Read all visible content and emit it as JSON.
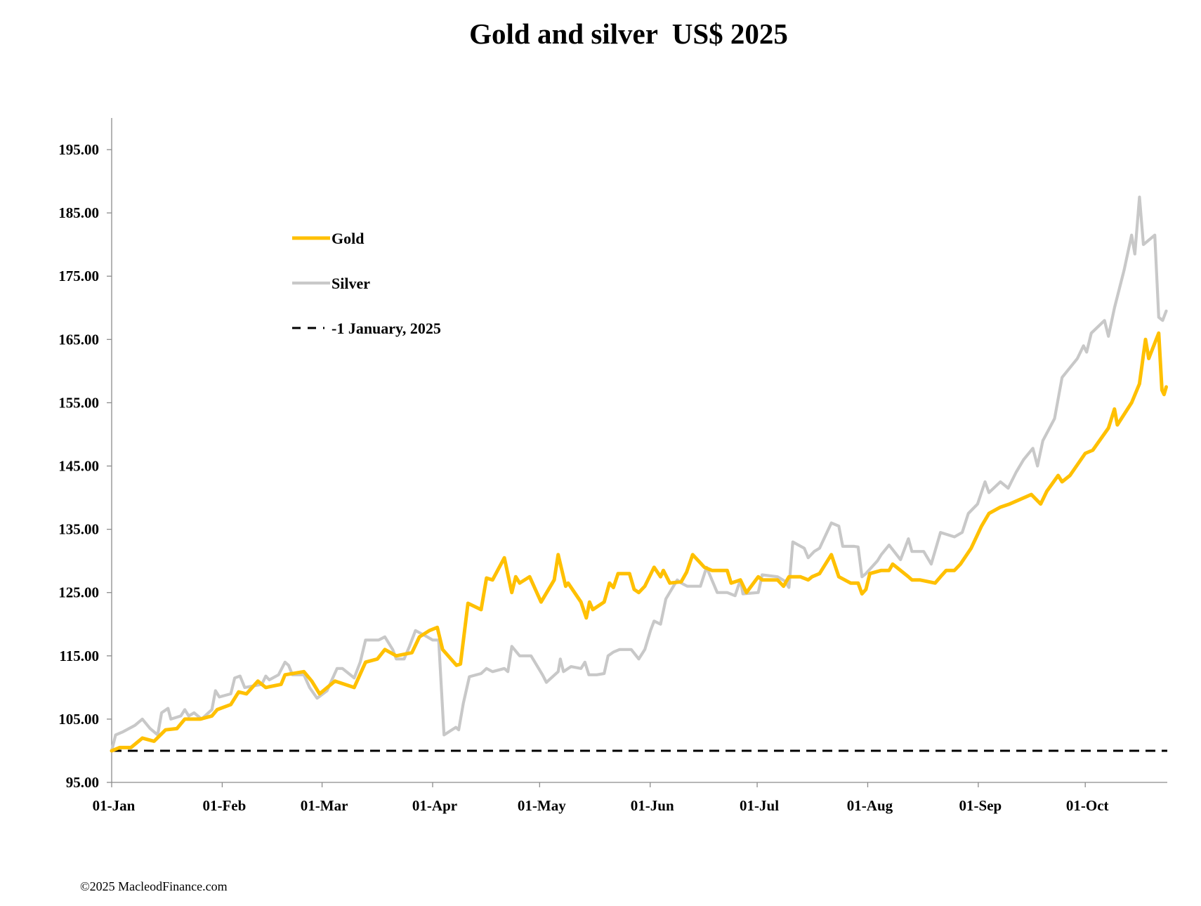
{
  "chart_data": {
    "type": "line",
    "title": "Gold and silver  US$ 2025",
    "xlabel": "",
    "ylabel": "",
    "x_unit": "days since 01-Jan-2025",
    "xlim": [
      0,
      296
    ],
    "ylim": [
      95,
      200
    ],
    "yticks": [
      95,
      105,
      115,
      125,
      135,
      145,
      155,
      165,
      175,
      185,
      195
    ],
    "ytick_labels": [
      "95.00",
      "105.00",
      "115.00",
      "125.00",
      "135.00",
      "145.00",
      "155.00",
      "165.00",
      "175.00",
      "185.00",
      "195.00"
    ],
    "xticks": [
      0,
      31,
      59,
      90,
      120,
      151,
      181,
      212,
      243,
      273
    ],
    "xtick_labels": [
      "01-Jan",
      "01-Feb",
      "01-Mar",
      "01-Apr",
      "01-May",
      "01-Jun",
      "01-Jul",
      "01-Aug",
      "01-Sep",
      "01-Oct"
    ],
    "grid": false,
    "legend_position": "upper-left",
    "series": [
      {
        "name": "Gold",
        "color": "#FFC000",
        "style": "solid",
        "points": [
          [
            0,
            100
          ],
          [
            2.2,
            100.5
          ],
          [
            5.4,
            100.5
          ],
          [
            8.6,
            102
          ],
          [
            11.9,
            101.5
          ],
          [
            15.1,
            103.3
          ],
          [
            18.3,
            103.5
          ],
          [
            20.5,
            105
          ],
          [
            24.8,
            105
          ],
          [
            28.1,
            105.5
          ],
          [
            29.6,
            106.5
          ],
          [
            33.4,
            107.3
          ],
          [
            35.6,
            109.3
          ],
          [
            37.8,
            109
          ],
          [
            41,
            111
          ],
          [
            43.2,
            110
          ],
          [
            47.5,
            110.5
          ],
          [
            48.6,
            112
          ],
          [
            53.9,
            112.5
          ],
          [
            56.1,
            111
          ],
          [
            58.3,
            109
          ],
          [
            62.6,
            111
          ],
          [
            68,
            110
          ],
          [
            71.2,
            114
          ],
          [
            74.5,
            114.5
          ],
          [
            76.6,
            116
          ],
          [
            79.8,
            115
          ],
          [
            84.2,
            115.5
          ],
          [
            86.3,
            118
          ],
          [
            89.1,
            119
          ],
          [
            91.3,
            119.5
          ],
          [
            92.8,
            116
          ],
          [
            96.7,
            113.5
          ],
          [
            97.8,
            113.7
          ],
          [
            99.9,
            123.3
          ],
          [
            103.6,
            122.3
          ],
          [
            105.1,
            127.3
          ],
          [
            106.8,
            127
          ],
          [
            110.1,
            130.5
          ],
          [
            112.2,
            125
          ],
          [
            113.3,
            127.5
          ],
          [
            114.4,
            126.5
          ],
          [
            117.2,
            127.5
          ],
          [
            120.4,
            123.5
          ],
          [
            124.1,
            127
          ],
          [
            125.2,
            131
          ],
          [
            127.3,
            126
          ],
          [
            128,
            126.5
          ],
          [
            131.6,
            123.5
          ],
          [
            133.1,
            121
          ],
          [
            134,
            123.5
          ],
          [
            134.9,
            122.3
          ],
          [
            138.1,
            123.5
          ],
          [
            139.6,
            126.5
          ],
          [
            140.7,
            125.8
          ],
          [
            142,
            128
          ],
          [
            145.2,
            128
          ],
          [
            146.5,
            125.5
          ],
          [
            147.8,
            125
          ],
          [
            149.5,
            126
          ],
          [
            152.1,
            129
          ],
          [
            153.9,
            127.5
          ],
          [
            154.7,
            128.5
          ],
          [
            156.5,
            126.5
          ],
          [
            159.7,
            126.7
          ],
          [
            161.2,
            128.2
          ],
          [
            162.9,
            131
          ],
          [
            166.2,
            129
          ],
          [
            168.3,
            128.5
          ],
          [
            172.6,
            128.5
          ],
          [
            173.7,
            126.5
          ],
          [
            176.3,
            127
          ],
          [
            178,
            125
          ],
          [
            181.3,
            127.5
          ],
          [
            182.4,
            127
          ],
          [
            186.7,
            127
          ],
          [
            188.4,
            126
          ],
          [
            189.9,
            127.5
          ],
          [
            193.1,
            127.5
          ],
          [
            195.3,
            127
          ],
          [
            196.4,
            127.5
          ],
          [
            198.5,
            128
          ],
          [
            201.8,
            131
          ],
          [
            203.9,
            127.5
          ],
          [
            207.2,
            126.5
          ],
          [
            209.3,
            126.5
          ],
          [
            210.4,
            124.8
          ],
          [
            211.5,
            125.5
          ],
          [
            212.6,
            128
          ],
          [
            215.8,
            128.5
          ],
          [
            218,
            128.5
          ],
          [
            219,
            129.5
          ],
          [
            223.4,
            127.5
          ],
          [
            224.4,
            127
          ],
          [
            226.6,
            127
          ],
          [
            230.9,
            126.5
          ],
          [
            232.4,
            127.5
          ],
          [
            234,
            128.5
          ],
          [
            236.3,
            128.5
          ],
          [
            238,
            129.5
          ],
          [
            241,
            132
          ],
          [
            243.9,
            135.5
          ],
          [
            246,
            137.5
          ],
          [
            249.2,
            138.5
          ],
          [
            251.8,
            139
          ],
          [
            257.9,
            140.5
          ],
          [
            260.5,
            139
          ],
          [
            262.2,
            141
          ],
          [
            265.4,
            143.5
          ],
          [
            266.5,
            142.5
          ],
          [
            268.7,
            143.5
          ],
          [
            273,
            147
          ],
          [
            275.1,
            147.5
          ],
          [
            279.5,
            151
          ],
          [
            281.2,
            154
          ],
          [
            282,
            151.5
          ],
          [
            286,
            155
          ],
          [
            288.2,
            158
          ],
          [
            289.9,
            165
          ],
          [
            290.8,
            162
          ],
          [
            293.6,
            166
          ],
          [
            294.5,
            157
          ],
          [
            295.1,
            156.3
          ],
          [
            295.7,
            157.5
          ]
        ]
      },
      {
        "name": "Silver",
        "color": "#C8C8C8",
        "style": "solid",
        "points": [
          [
            0,
            100
          ],
          [
            1.1,
            102.5
          ],
          [
            3.2,
            103
          ],
          [
            6.5,
            104
          ],
          [
            8.6,
            105
          ],
          [
            10.8,
            103.5
          ],
          [
            12.9,
            102.5
          ],
          [
            14,
            106
          ],
          [
            15.8,
            106.7
          ],
          [
            16.6,
            105
          ],
          [
            19.4,
            105.5
          ],
          [
            20.5,
            106.5
          ],
          [
            21.6,
            105.5
          ],
          [
            23.1,
            106
          ],
          [
            25.2,
            105
          ],
          [
            28.1,
            106.5
          ],
          [
            29.1,
            109.5
          ],
          [
            30.2,
            108.5
          ],
          [
            33.4,
            109
          ],
          [
            34.5,
            111.5
          ],
          [
            36,
            111.8
          ],
          [
            37.3,
            110
          ],
          [
            42.1,
            110.5
          ],
          [
            43.2,
            111.8
          ],
          [
            44.2,
            111.2
          ],
          [
            46.8,
            112
          ],
          [
            48.6,
            114
          ],
          [
            49.6,
            113.5
          ],
          [
            50.7,
            112
          ],
          [
            53.9,
            112
          ],
          [
            55.5,
            110
          ],
          [
            57.6,
            108.3
          ],
          [
            60.4,
            109.5
          ],
          [
            63.2,
            113
          ],
          [
            64.7,
            113
          ],
          [
            68,
            111.5
          ],
          [
            69.7,
            114
          ],
          [
            71.2,
            117.5
          ],
          [
            74.9,
            117.5
          ],
          [
            76.6,
            118
          ],
          [
            78.8,
            116
          ],
          [
            79.8,
            114.5
          ],
          [
            82,
            114.5
          ],
          [
            83.5,
            116.5
          ],
          [
            85.2,
            119
          ],
          [
            88.5,
            118
          ],
          [
            90,
            117.5
          ],
          [
            91.7,
            117.5
          ],
          [
            93.2,
            102.5
          ],
          [
            96.5,
            103.7
          ],
          [
            97.3,
            103.3
          ],
          [
            98.6,
            107.5
          ],
          [
            100.3,
            111.7
          ],
          [
            103.6,
            112.2
          ],
          [
            105.1,
            113
          ],
          [
            106.8,
            112.5
          ],
          [
            110.1,
            113
          ],
          [
            111.1,
            112.5
          ],
          [
            112.2,
            116.5
          ],
          [
            114.4,
            115
          ],
          [
            117.6,
            115
          ],
          [
            120.8,
            112
          ],
          [
            121.9,
            110.8
          ],
          [
            125.2,
            112.5
          ],
          [
            125.8,
            114.5
          ],
          [
            126.7,
            112.5
          ],
          [
            128.8,
            113.3
          ],
          [
            131.6,
            113
          ],
          [
            132.7,
            114
          ],
          [
            133.8,
            112
          ],
          [
            136,
            112
          ],
          [
            138.1,
            112.2
          ],
          [
            139.2,
            115
          ],
          [
            140.7,
            115.6
          ],
          [
            142.4,
            116
          ],
          [
            145.7,
            116
          ],
          [
            147.8,
            114.5
          ],
          [
            149.5,
            116
          ],
          [
            151.1,
            119
          ],
          [
            152.1,
            120.5
          ],
          [
            153.9,
            120
          ],
          [
            155.4,
            124
          ],
          [
            158.6,
            127
          ],
          [
            159.7,
            126.5
          ],
          [
            161.4,
            126
          ],
          [
            165.1,
            126
          ],
          [
            166.8,
            129
          ],
          [
            169.8,
            125
          ],
          [
            172.6,
            125
          ],
          [
            174.8,
            124.5
          ],
          [
            176.3,
            127
          ],
          [
            177,
            124.8
          ],
          [
            181.3,
            125
          ],
          [
            182.4,
            127.8
          ],
          [
            186.7,
            127.5
          ],
          [
            188.8,
            126.8
          ],
          [
            189.9,
            125.8
          ],
          [
            191,
            133
          ],
          [
            194.2,
            132
          ],
          [
            195.3,
            130.5
          ],
          [
            197,
            131.5
          ],
          [
            198.5,
            132
          ],
          [
            201.8,
            136
          ],
          [
            203.9,
            135.5
          ],
          [
            205,
            132.3
          ],
          [
            208.2,
            132.3
          ],
          [
            209.3,
            132.2
          ],
          [
            210.4,
            127.5
          ],
          [
            211.5,
            128
          ],
          [
            214.7,
            130
          ],
          [
            215.8,
            131
          ],
          [
            218,
            132.5
          ],
          [
            221.2,
            130.2
          ],
          [
            223.4,
            133.5
          ],
          [
            224.4,
            131.5
          ],
          [
            227.7,
            131.5
          ],
          [
            229.8,
            129.5
          ],
          [
            232.4,
            134.5
          ],
          [
            236.3,
            133.8
          ],
          [
            238.5,
            134.5
          ],
          [
            240.2,
            137.5
          ],
          [
            242.8,
            139
          ],
          [
            244.9,
            142.5
          ],
          [
            246,
            140.8
          ],
          [
            249.2,
            142.5
          ],
          [
            251.4,
            141.5
          ],
          [
            253.6,
            144
          ],
          [
            255.7,
            146
          ],
          [
            258.3,
            147.8
          ],
          [
            259.6,
            145
          ],
          [
            261.1,
            149
          ],
          [
            264.4,
            152.5
          ],
          [
            266.5,
            159
          ],
          [
            270.8,
            162
          ],
          [
            272.5,
            164
          ],
          [
            273.4,
            163
          ],
          [
            274.7,
            166
          ],
          [
            278.4,
            168
          ],
          [
            279.5,
            165.5
          ],
          [
            281.2,
            170
          ],
          [
            283.9,
            176
          ],
          [
            286,
            181.5
          ],
          [
            286.9,
            178.5
          ],
          [
            288.2,
            187.5
          ],
          [
            289.3,
            180
          ],
          [
            292.5,
            181.5
          ],
          [
            293.6,
            168.5
          ],
          [
            294.7,
            168
          ],
          [
            295.7,
            169.5
          ]
        ]
      },
      {
        "name": "1 January, 2025",
        "color": "#000000",
        "style": "dashed",
        "points": [
          [
            0,
            100
          ],
          [
            296,
            100
          ]
        ]
      }
    ],
    "legend": [
      {
        "label": "Gold",
        "color": "#FFC000",
        "style": "solid"
      },
      {
        "label": "Silver",
        "color": "#C8C8C8",
        "style": "solid"
      },
      {
        "label": "-1 January, 2025",
        "color": "#000000",
        "style": "dashed"
      }
    ]
  },
  "footer": {
    "copyright": "©2025 MacleodFinance.com"
  }
}
